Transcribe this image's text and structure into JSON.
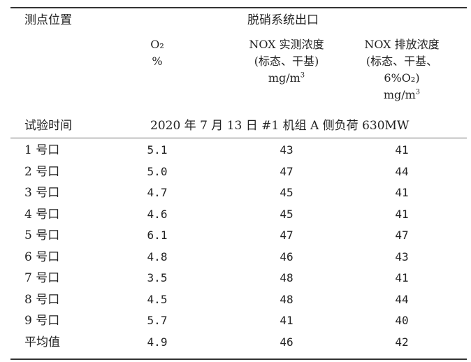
{
  "header": {
    "location_label": "测点位置",
    "outlet_title": "脱硝系统出口",
    "o2_label": "O₂",
    "o2_unit": "%",
    "measured_title": "NOX 实测浓度",
    "measured_cond": "(标态、干基)",
    "measured_unit_base": "mg/m",
    "measured_unit_sup": "3",
    "emission_title": "NOX 排放浓度",
    "emission_cond1": "(标态、干基、",
    "emission_cond2": "6%O₂)",
    "emission_unit_base": "mg/m",
    "emission_unit_sup": "3"
  },
  "test_info": {
    "time_label": "试验时间",
    "description": "2020 年 7 月 13 日  #1 机组 A 侧负荷 630MW"
  },
  "rows": [
    {
      "port": "1 号口",
      "o2": "5.1",
      "measured": "43",
      "emission": "41"
    },
    {
      "port": "2 号口",
      "o2": "5.0",
      "measured": "47",
      "emission": "44"
    },
    {
      "port": "3 号口",
      "o2": "4.7",
      "measured": "45",
      "emission": "41"
    },
    {
      "port": "4 号口",
      "o2": "4.6",
      "measured": "45",
      "emission": "41"
    },
    {
      "port": "5 号口",
      "o2": "6.1",
      "measured": "47",
      "emission": "47"
    },
    {
      "port": "6 号口",
      "o2": "4.8",
      "measured": "46",
      "emission": "43"
    },
    {
      "port": "7 号口",
      "o2": "3.5",
      "measured": "48",
      "emission": "41"
    },
    {
      "port": "8 号口",
      "o2": "4.5",
      "measured": "48",
      "emission": "44"
    },
    {
      "port": "9 号口",
      "o2": "5.7",
      "measured": "41",
      "emission": "40"
    },
    {
      "port": "平均值",
      "o2": "4.9",
      "measured": "46",
      "emission": "42"
    }
  ]
}
